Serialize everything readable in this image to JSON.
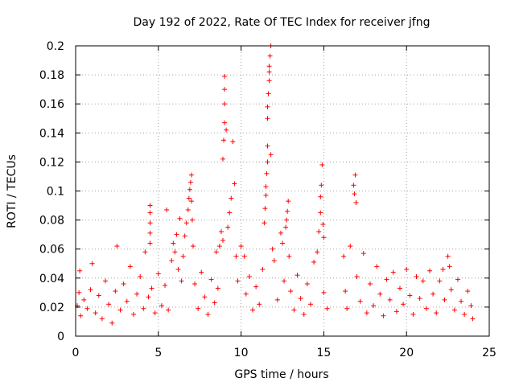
{
  "chart_data": {
    "type": "scatter",
    "title": "Day 192 of 2022, Rate Of TEC Index for receiver jfng",
    "xlabel": "GPS time / hours",
    "ylabel": "ROTI / TECUs",
    "xlim": [
      0,
      25
    ],
    "ylim": [
      0,
      0.2
    ],
    "xticks": [
      0,
      5,
      10,
      15,
      20,
      25
    ],
    "xtick_labels": [
      "0",
      "5",
      "10",
      "15",
      "20",
      "25"
    ],
    "yticks": [
      0,
      0.02,
      0.04,
      0.06,
      0.08,
      0.1,
      0.12,
      0.14,
      0.16,
      0.18,
      0.2
    ],
    "ytick_labels": [
      "0",
      "0.02",
      "0.04",
      "0.06",
      "0.08",
      "0.1",
      "0.12",
      "0.14",
      "0.16",
      "0.18",
      "0.2"
    ],
    "grid": true,
    "marker": "+",
    "marker_color": "#ff0000",
    "series": [
      {
        "name": "ROTI",
        "points": [
          [
            0.1,
            0.021
          ],
          [
            0.2,
            0.03
          ],
          [
            0.25,
            0.045
          ],
          [
            0.3,
            0.014
          ],
          [
            0.5,
            0.025
          ],
          [
            0.7,
            0.019
          ],
          [
            0.9,
            0.032
          ],
          [
            1.0,
            0.05
          ],
          [
            1.2,
            0.016
          ],
          [
            1.4,
            0.028
          ],
          [
            1.6,
            0.012
          ],
          [
            1.8,
            0.038
          ],
          [
            2.0,
            0.022
          ],
          [
            2.2,
            0.009
          ],
          [
            2.4,
            0.031
          ],
          [
            2.5,
            0.062
          ],
          [
            2.7,
            0.018
          ],
          [
            2.9,
            0.036
          ],
          [
            3.1,
            0.024
          ],
          [
            3.3,
            0.048
          ],
          [
            3.5,
            0.015
          ],
          [
            3.7,
            0.029
          ],
          [
            3.9,
            0.041
          ],
          [
            4.1,
            0.019
          ],
          [
            4.2,
            0.058
          ],
          [
            4.4,
            0.027
          ],
          [
            4.5,
            0.09
          ],
          [
            4.5,
            0.085
          ],
          [
            4.5,
            0.078
          ],
          [
            4.5,
            0.071
          ],
          [
            4.5,
            0.064
          ],
          [
            4.6,
            0.033
          ],
          [
            4.8,
            0.016
          ],
          [
            5.0,
            0.043
          ],
          [
            5.2,
            0.021
          ],
          [
            5.4,
            0.035
          ],
          [
            5.5,
            0.087
          ],
          [
            5.6,
            0.018
          ],
          [
            5.8,
            0.052
          ],
          [
            5.9,
            0.064
          ],
          [
            6.0,
            0.058
          ],
          [
            6.1,
            0.07
          ],
          [
            6.2,
            0.046
          ],
          [
            6.3,
            0.081
          ],
          [
            6.4,
            0.038
          ],
          [
            6.5,
            0.055
          ],
          [
            6.6,
            0.069
          ],
          [
            6.7,
            0.078
          ],
          [
            6.8,
            0.087
          ],
          [
            6.85,
            0.095
          ],
          [
            6.9,
            0.101
          ],
          [
            6.95,
            0.106
          ],
          [
            7.0,
            0.111
          ],
          [
            7.0,
            0.093
          ],
          [
            7.05,
            0.08
          ],
          [
            7.1,
            0.062
          ],
          [
            7.2,
            0.036
          ],
          [
            7.4,
            0.019
          ],
          [
            7.6,
            0.044
          ],
          [
            7.8,
            0.027
          ],
          [
            8.0,
            0.015
          ],
          [
            8.2,
            0.039
          ],
          [
            8.4,
            0.023
          ],
          [
            8.5,
            0.058
          ],
          [
            8.6,
            0.033
          ],
          [
            8.7,
            0.062
          ],
          [
            8.8,
            0.072
          ],
          [
            8.9,
            0.066
          ],
          [
            8.9,
            0.122
          ],
          [
            8.95,
            0.135
          ],
          [
            9.0,
            0.147
          ],
          [
            9.0,
            0.16
          ],
          [
            9.0,
            0.17
          ],
          [
            9.0,
            0.179
          ],
          [
            9.1,
            0.142
          ],
          [
            9.2,
            0.075
          ],
          [
            9.3,
            0.085
          ],
          [
            9.4,
            0.095
          ],
          [
            9.5,
            0.134
          ],
          [
            9.6,
            0.105
          ],
          [
            9.7,
            0.055
          ],
          [
            9.8,
            0.038
          ],
          [
            10.0,
            0.062
          ],
          [
            10.2,
            0.055
          ],
          [
            10.3,
            0.029
          ],
          [
            10.5,
            0.041
          ],
          [
            10.7,
            0.018
          ],
          [
            10.9,
            0.034
          ],
          [
            11.1,
            0.022
          ],
          [
            11.3,
            0.046
          ],
          [
            11.4,
            0.078
          ],
          [
            11.45,
            0.088
          ],
          [
            11.5,
            0.097
          ],
          [
            11.5,
            0.103
          ],
          [
            11.55,
            0.112
          ],
          [
            11.6,
            0.12
          ],
          [
            11.6,
            0.131
          ],
          [
            11.6,
            0.15
          ],
          [
            11.6,
            0.158
          ],
          [
            11.65,
            0.167
          ],
          [
            11.7,
            0.176
          ],
          [
            11.7,
            0.182
          ],
          [
            11.7,
            0.186
          ],
          [
            11.75,
            0.193
          ],
          [
            11.8,
            0.2
          ],
          [
            11.8,
            0.125
          ],
          [
            11.9,
            0.06
          ],
          [
            12.0,
            0.052
          ],
          [
            12.2,
            0.025
          ],
          [
            12.4,
            0.071
          ],
          [
            12.5,
            0.064
          ],
          [
            12.6,
            0.038
          ],
          [
            12.7,
            0.075
          ],
          [
            12.75,
            0.08
          ],
          [
            12.8,
            0.086
          ],
          [
            12.85,
            0.093
          ],
          [
            12.9,
            0.055
          ],
          [
            13.0,
            0.031
          ],
          [
            13.2,
            0.018
          ],
          [
            13.4,
            0.042
          ],
          [
            13.6,
            0.026
          ],
          [
            13.8,
            0.015
          ],
          [
            14.0,
            0.036
          ],
          [
            14.2,
            0.022
          ],
          [
            14.4,
            0.051
          ],
          [
            14.6,
            0.058
          ],
          [
            14.7,
            0.072
          ],
          [
            14.8,
            0.085
          ],
          [
            14.8,
            0.096
          ],
          [
            14.85,
            0.104
          ],
          [
            14.9,
            0.118
          ],
          [
            14.95,
            0.077
          ],
          [
            15.0,
            0.068
          ],
          [
            15.0,
            0.03
          ],
          [
            15.2,
            0.019
          ],
          [
            16.2,
            0.055
          ],
          [
            16.3,
            0.031
          ],
          [
            16.4,
            0.019
          ],
          [
            16.6,
            0.062
          ],
          [
            16.8,
            0.104
          ],
          [
            16.85,
            0.098
          ],
          [
            16.9,
            0.111
          ],
          [
            16.95,
            0.092
          ],
          [
            17.0,
            0.041
          ],
          [
            17.2,
            0.024
          ],
          [
            17.4,
            0.057
          ],
          [
            17.6,
            0.016
          ],
          [
            17.8,
            0.036
          ],
          [
            18.0,
            0.021
          ],
          [
            18.2,
            0.048
          ],
          [
            18.4,
            0.029
          ],
          [
            18.6,
            0.014
          ],
          [
            18.8,
            0.039
          ],
          [
            19.0,
            0.025
          ],
          [
            19.2,
            0.044
          ],
          [
            19.4,
            0.017
          ],
          [
            19.6,
            0.033
          ],
          [
            19.8,
            0.022
          ],
          [
            20.0,
            0.046
          ],
          [
            20.2,
            0.028
          ],
          [
            20.4,
            0.015
          ],
          [
            20.6,
            0.041
          ],
          [
            20.8,
            0.026
          ],
          [
            21.0,
            0.038
          ],
          [
            21.2,
            0.019
          ],
          [
            21.4,
            0.045
          ],
          [
            21.6,
            0.029
          ],
          [
            21.8,
            0.016
          ],
          [
            22.0,
            0.038
          ],
          [
            22.2,
            0.046
          ],
          [
            22.3,
            0.025
          ],
          [
            22.5,
            0.055
          ],
          [
            22.6,
            0.048
          ],
          [
            22.7,
            0.032
          ],
          [
            22.9,
            0.018
          ],
          [
            23.1,
            0.039
          ],
          [
            23.3,
            0.024
          ],
          [
            23.5,
            0.015
          ],
          [
            23.7,
            0.031
          ],
          [
            23.9,
            0.021
          ],
          [
            24.0,
            0.012
          ]
        ]
      }
    ]
  }
}
